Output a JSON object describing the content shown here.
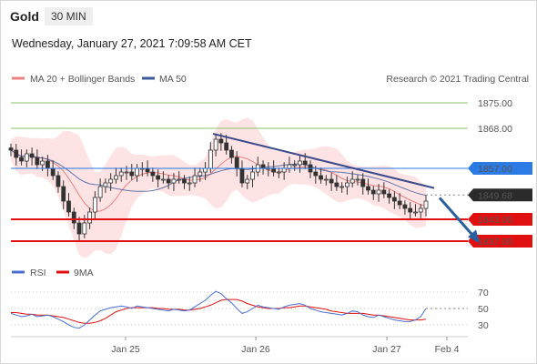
{
  "header": {
    "instrument": "Gold",
    "timeframe": "30 MIN",
    "datetime": "Wednesday, January 27, 2021 7:09:58 AM CET"
  },
  "credit": "Research © 2021 Trading Central",
  "colors": {
    "ma20": "#f08080",
    "bollinger_fill": "#fde3e3",
    "ma50": "#3b5a9a",
    "candle": "#333333",
    "resistance_green": "#8dc46a",
    "resistance_green_text": "#5a9a2a",
    "pivot_blue": "#2c7be5",
    "support_red": "#e01010",
    "current_price": "#2b2b2b",
    "trend_line": "#3b4a8a",
    "arrow": "#2a5fa0",
    "rsi": "#4a6fd0",
    "rsi_ma": "#e01010"
  },
  "chart_data": [
    {
      "type": "candlestick",
      "legend": [
        "MA 20 + Bollinger Bands",
        "MA 50"
      ],
      "x_ticks": [
        "Jan 25",
        "Jan 26",
        "Jan 27",
        "Feb 4"
      ],
      "ylim": [
        1832,
        1879
      ],
      "levels": [
        {
          "value": 1875.0,
          "label": "1875.00",
          "kind": "resistance"
        },
        {
          "value": 1868.0,
          "label": "1868.00",
          "kind": "resistance"
        },
        {
          "value": 1857.0,
          "label": "1857.00",
          "kind": "pivot"
        },
        {
          "value": 1849.68,
          "label": "1849.68",
          "kind": "last"
        },
        {
          "value": 1843.0,
          "label": "1843.00",
          "kind": "support"
        },
        {
          "value": 1837.0,
          "label": "1837.00",
          "kind": "support"
        }
      ],
      "trend_line": [
        [
          0.0,
          1866.5
        ],
        [
          10.2,
          1851.6
        ]
      ],
      "arrow": {
        "from": [
          10.2,
          1848.9
        ],
        "to": [
          11.2,
          1836.9
        ]
      },
      "closes": [
        1862,
        1860,
        1859,
        1861,
        1860,
        1858,
        1859,
        1857,
        1855,
        1852,
        1848,
        1845,
        1842,
        1839,
        1842,
        1845,
        1849,
        1852,
        1853,
        1854,
        1855,
        1856,
        1856,
        1855,
        1857,
        1857,
        1856,
        1855,
        1854,
        1854,
        1853,
        1854,
        1854,
        1853,
        1853,
        1855,
        1856,
        1857,
        1862,
        1865,
        1864,
        1862,
        1860,
        1857,
        1853,
        1854,
        1856,
        1858,
        1857,
        1857,
        1856,
        1856,
        1857,
        1858,
        1858,
        1859,
        1858,
        1856,
        1855,
        1854,
        1854,
        1853,
        1852,
        1852,
        1853,
        1854,
        1854,
        1852,
        1851,
        1850,
        1851,
        1850,
        1849,
        1848,
        1847,
        1846,
        1845,
        1845,
        1846,
        1848
      ]
    },
    {
      "type": "line",
      "title": "RSI",
      "legend": [
        "RSI",
        "9MA"
      ],
      "y_ticks": [
        70,
        50,
        30
      ],
      "ylim": [
        20,
        80
      ],
      "last_value": 50,
      "rsi": [
        44,
        42,
        40,
        41,
        43,
        40,
        41,
        42,
        40,
        37,
        34,
        30,
        27,
        26,
        30,
        36,
        42,
        47,
        49,
        51,
        52,
        53,
        52,
        50,
        53,
        52,
        51,
        50,
        49,
        48,
        47,
        49,
        48,
        47,
        48,
        52,
        56,
        60,
        66,
        71,
        68,
        62,
        57,
        50,
        44,
        46,
        50,
        54,
        52,
        51,
        50,
        49,
        52,
        54,
        55,
        56,
        54,
        50,
        48,
        46,
        45,
        44,
        43,
        42,
        44,
        47,
        46,
        42,
        40,
        39,
        42,
        40,
        38,
        36,
        35,
        34,
        34,
        36,
        40,
        50
      ],
      "ma9": [
        45,
        45,
        44,
        43,
        43,
        42,
        42,
        42,
        41,
        40,
        39,
        37,
        35,
        33,
        32,
        32,
        33,
        35,
        38,
        42,
        46,
        48,
        50,
        51,
        51,
        51,
        51,
        51,
        50,
        50,
        49,
        49,
        49,
        48,
        48,
        49,
        50,
        52,
        54,
        57,
        60,
        61,
        61,
        61,
        59,
        56,
        54,
        52,
        51,
        50,
        50,
        50,
        51,
        51,
        52,
        53,
        53,
        52,
        51,
        50,
        49,
        47,
        46,
        45,
        44,
        44,
        44,
        44,
        43,
        42,
        42,
        41,
        40,
        39,
        38,
        37,
        36,
        36,
        36,
        37
      ]
    }
  ]
}
